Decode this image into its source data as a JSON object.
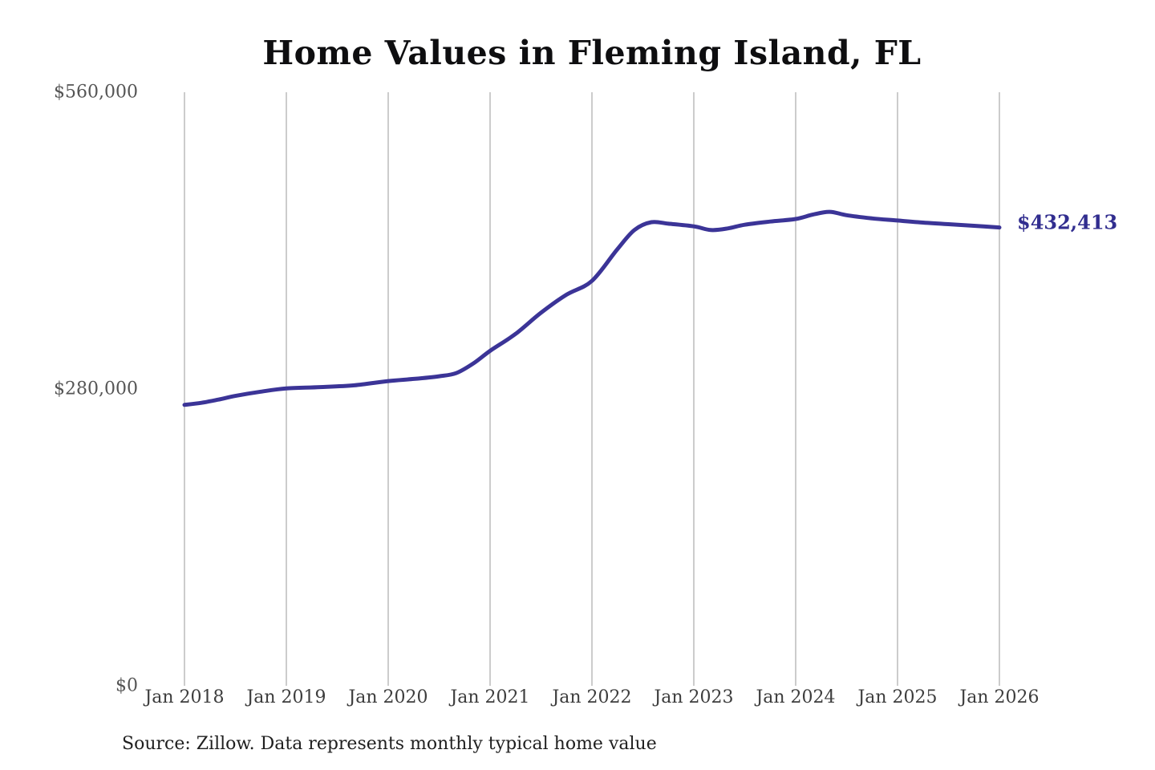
{
  "title": "Home Values in Fleming Island, FL",
  "source_note": "Source: Zillow. Data represents monthly typical home value",
  "latest_value_label": "$432,413",
  "colors": {
    "background": "#ffffff",
    "line": "#3b3497",
    "latest_label": "#312d8f",
    "gridline": "#cccccc",
    "x_tick_text": "#3d3d3d",
    "y_tick_text": "#555555",
    "title_text": "#0e0e10",
    "source_text": "#1f1f1f"
  },
  "chart_data": {
    "type": "line",
    "title": "Home Values in Fleming Island, FL",
    "xlabel": "",
    "ylabel": "",
    "ylim": [
      0,
      560000
    ],
    "x_unit": "months_since_jan_2018",
    "x_range_months": [
      0,
      96
    ],
    "grid": "vertical-only",
    "legend": "none",
    "x_tick_labels": [
      "Jan 2018",
      "Jan 2019",
      "Jan 2020",
      "Jan 2021",
      "Jan 2022",
      "Jan 2023",
      "Jan 2024",
      "Jan 2025",
      "Jan 2026"
    ],
    "y_ticks": [
      {
        "value": 0,
        "label": "$0"
      },
      {
        "value": 280000,
        "label": "$280,000"
      },
      {
        "value": 560000,
        "label": "$560,000"
      }
    ],
    "series": [
      {
        "name": "Typical home value",
        "points": [
          [
            0,
            265000
          ],
          [
            2,
            267000
          ],
          [
            4,
            270000
          ],
          [
            6,
            273500
          ],
          [
            9,
            277500
          ],
          [
            12,
            280500
          ],
          [
            16,
            281800
          ],
          [
            20,
            283500
          ],
          [
            24,
            287500
          ],
          [
            27,
            289500
          ],
          [
            30,
            292000
          ],
          [
            32,
            295000
          ],
          [
            34,
            304000
          ],
          [
            36,
            316000
          ],
          [
            39,
            332000
          ],
          [
            42,
            352000
          ],
          [
            45,
            369000
          ],
          [
            48,
            382000
          ],
          [
            51,
            412000
          ],
          [
            53,
            430000
          ],
          [
            55,
            437400
          ],
          [
            57,
            436000
          ],
          [
            60,
            433500
          ],
          [
            62,
            430000
          ],
          [
            64,
            431500
          ],
          [
            66,
            435000
          ],
          [
            69,
            438000
          ],
          [
            72,
            440400
          ],
          [
            74,
            444500
          ],
          [
            76,
            447200
          ],
          [
            78,
            444000
          ],
          [
            81,
            441000
          ],
          [
            84,
            439000
          ],
          [
            87,
            437000
          ],
          [
            90,
            435500
          ],
          [
            93,
            434000
          ],
          [
            96,
            432413
          ]
        ]
      }
    ],
    "latest_value": 432413
  }
}
